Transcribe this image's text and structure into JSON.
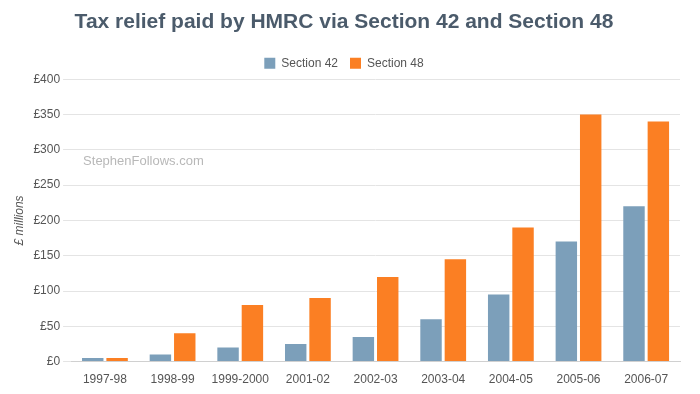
{
  "chart_data": {
    "type": "bar",
    "title": "Tax relief paid by HMRC via Section 42 and Section 48",
    "y_label": "£ millions",
    "annotations": [
      "StephenFollows.com"
    ],
    "categories": [
      "1997-98",
      "1998-99",
      "1999-2000",
      "2001-02",
      "2002-03",
      "2003-04",
      "2004-05",
      "2005-06",
      "2006-07"
    ],
    "series": [
      {
        "name": "Section 42",
        "color": "#7c9fba",
        "values": [
          5,
          10,
          20,
          25,
          35,
          60,
          95,
          170,
          220
        ]
      },
      {
        "name": "Section 48",
        "color": "#fb7f23",
        "values": [
          5,
          40,
          80,
          90,
          120,
          145,
          190,
          350,
          340
        ]
      }
    ],
    "ylim": [
      0,
      400
    ],
    "yticks": [
      {
        "value": 0,
        "label": "£0"
      },
      {
        "value": 50,
        "label": "£50"
      },
      {
        "value": 100,
        "label": "£100"
      },
      {
        "value": 150,
        "label": "£150"
      },
      {
        "value": 200,
        "label": "£200"
      },
      {
        "value": 250,
        "label": "£250"
      },
      {
        "value": 300,
        "label": "£300"
      },
      {
        "value": 350,
        "label": "£350"
      },
      {
        "value": 400,
        "label": "£400"
      }
    ],
    "grid": true,
    "legend": "top"
  }
}
